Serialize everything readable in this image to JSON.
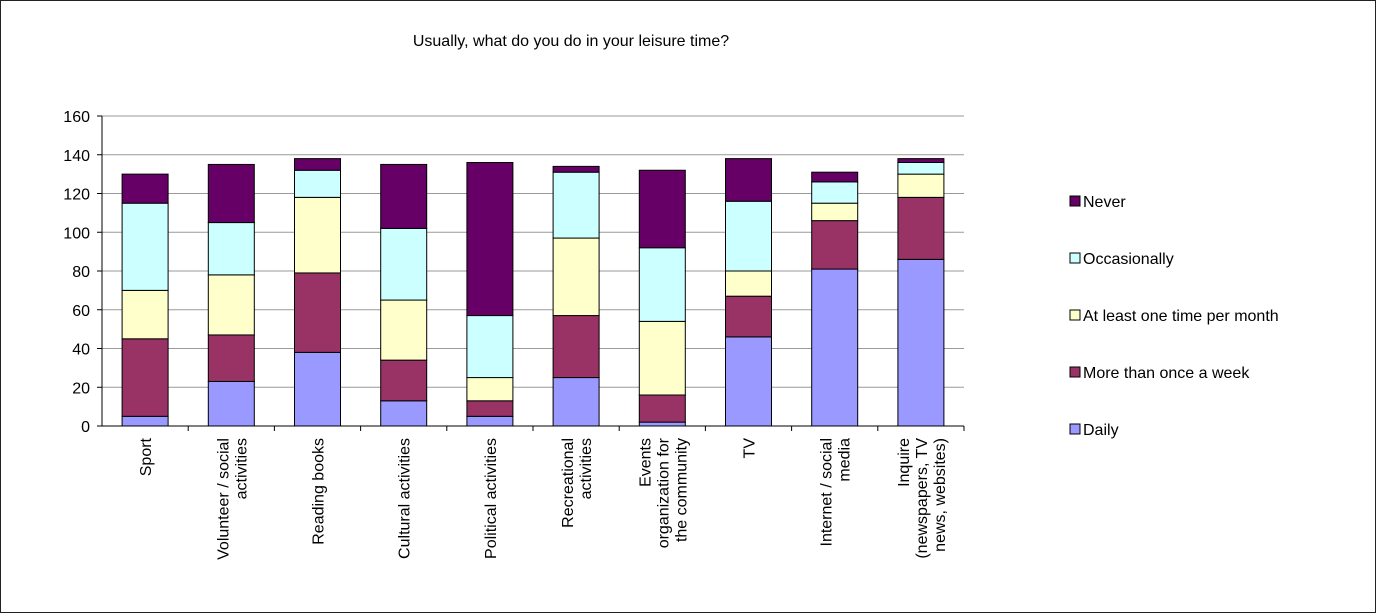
{
  "chart_data": {
    "type": "bar",
    "stacked": true,
    "title": "Usually, what do you do in your leisure time?",
    "xlabel": "",
    "ylabel": "",
    "ylim": [
      0,
      160
    ],
    "yticks": [
      0,
      20,
      40,
      60,
      80,
      100,
      120,
      140,
      160
    ],
    "grid": true,
    "legend_position": "right",
    "categories": [
      [
        "Sport"
      ],
      [
        "Volunteer / social",
        "activities"
      ],
      [
        "Reading books"
      ],
      [
        "Cultural activities"
      ],
      [
        "Political activities"
      ],
      [
        "Recreational",
        "activities"
      ],
      [
        "Events",
        "organization for",
        "the community"
      ],
      [
        "TV"
      ],
      [
        "Internet / social",
        "media"
      ],
      [
        "Inquire",
        "(newspapers, TV",
        "news, websites)"
      ]
    ],
    "series": [
      {
        "name": "Daily",
        "color": "#9999ff",
        "values": [
          5,
          23,
          38,
          13,
          5,
          25,
          2,
          46,
          81,
          86
        ]
      },
      {
        "name": "More than once a week",
        "color": "#993366",
        "values": [
          40,
          24,
          41,
          21,
          8,
          32,
          14,
          21,
          25,
          32
        ]
      },
      {
        "name": "At least one time per month",
        "color": "#ffffcc",
        "values": [
          25,
          31,
          39,
          31,
          12,
          40,
          38,
          13,
          9,
          12
        ]
      },
      {
        "name": "Occasionally",
        "color": "#ccffff",
        "values": [
          45,
          27,
          14,
          37,
          32,
          34,
          38,
          36,
          11,
          6
        ]
      },
      {
        "name": "Never",
        "color": "#660066",
        "values": [
          15,
          30,
          6,
          33,
          79,
          3,
          40,
          22,
          5,
          2
        ]
      }
    ]
  }
}
